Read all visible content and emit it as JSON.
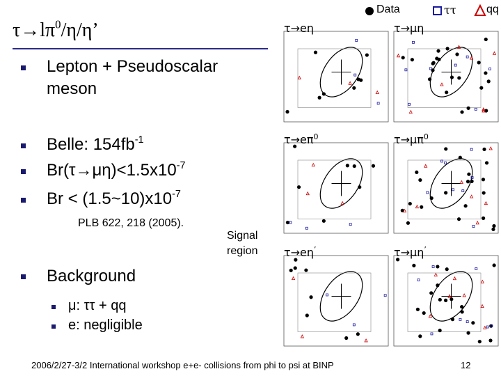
{
  "header": {
    "title": {
      "main": "τ→lπ",
      "sup": "0",
      "rest": "/η/η’"
    }
  },
  "legend": {
    "data": "Data",
    "tautau": "ττ",
    "qq": "qq"
  },
  "bullets": [
    {
      "lines": [
        "Lepton + Pseudoscalar",
        "meson"
      ]
    },
    {
      "text": "Belle: 154fb",
      "sup": "-1"
    },
    {
      "text": "Br(τ→μη)<1.5x10",
      "sup": "-7"
    },
    {
      "text": "Br < (1.5~10)x10",
      "sup": "-7"
    },
    {
      "text": "Background",
      "sub": [
        "μ: ττ + qq",
        "e: negligible"
      ]
    }
  ],
  "reference": "PLB 622, 218 (2005).",
  "signal_region": [
    "Signal",
    "region"
  ],
  "panels": [
    {
      "label": "τ→eη"
    },
    {
      "label": "τ→μη"
    },
    {
      "label": "τ→eπ",
      "sup": "0"
    },
    {
      "label": "τ→μπ",
      "sup": "0"
    },
    {
      "label": "τ→eη",
      "sup": "’"
    },
    {
      "label": "τ→μη",
      "sup": "’"
    }
  ],
  "footer": {
    "text": "2006/2/27-3/2 International workshop e+e- collisions from phi to psi at BINP",
    "page": "12"
  }
}
